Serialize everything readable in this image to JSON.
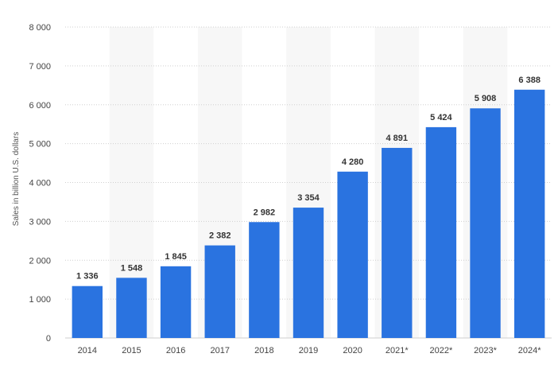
{
  "chart_data": {
    "type": "bar",
    "title": "",
    "xlabel": "",
    "ylabel": "Sales in billion U.S. dollars",
    "categories": [
      "2014",
      "2015",
      "2016",
      "2017",
      "2018",
      "2019",
      "2020",
      "2021*",
      "2022*",
      "2023*",
      "2024*"
    ],
    "values": [
      1336,
      1548,
      1845,
      2382,
      2982,
      3354,
      4280,
      4891,
      5424,
      5908,
      6388
    ],
    "value_labels": [
      "1 336",
      "1 548",
      "1 845",
      "2 382",
      "2 982",
      "3 354",
      "4 280",
      "4 891",
      "5 424",
      "5 908",
      "6 388"
    ],
    "ylim": [
      0,
      8000
    ],
    "yticks": [
      0,
      1000,
      2000,
      3000,
      4000,
      5000,
      6000,
      7000,
      8000
    ],
    "ytick_labels": [
      "0",
      "1 000",
      "2 000",
      "3 000",
      "4 000",
      "5 000",
      "6 000",
      "7 000",
      "8 000"
    ],
    "grid": true,
    "bar_color": "#2a73e0",
    "band_color": "#f7f7f7",
    "grid_color": "#cfcfcf"
  }
}
